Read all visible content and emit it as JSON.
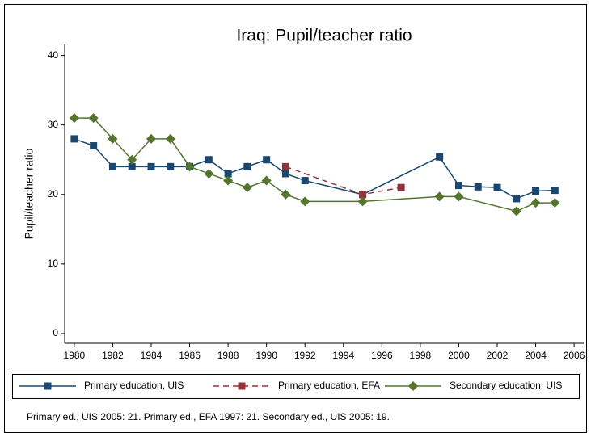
{
  "chart_data": {
    "type": "line",
    "title": "Iraq: Pupil/teacher ratio",
    "y_label": "Pupil/teacher ratio",
    "xlim": [
      1979.5,
      2006.5
    ],
    "ylim": [
      -1.4,
      41
    ],
    "xticks": [
      1980,
      1982,
      1984,
      1986,
      1988,
      1990,
      1992,
      1994,
      1996,
      1998,
      2000,
      2002,
      2004,
      2006
    ],
    "yticks": [
      0,
      10,
      20,
      30,
      40
    ],
    "series": [
      {
        "name": "Primary education, UIS",
        "color": "#1a476f",
        "marker": "square",
        "dash": false,
        "x": [
          1980,
          1981,
          1982,
          1983,
          1984,
          1985,
          1986,
          1987,
          1988,
          1989,
          1990,
          1991,
          1992,
          1995,
          1999,
          2000,
          2001,
          2002,
          2003,
          2004,
          2005
        ],
        "values": [
          28,
          27,
          24,
          24,
          24,
          24,
          24,
          25,
          23,
          24,
          25,
          23,
          22,
          20,
          25.4,
          21.3,
          21.1,
          21,
          19.4,
          20.5,
          20.6
        ]
      },
      {
        "name": "Primary education, EFA",
        "color": "#90353b",
        "marker": "square",
        "dash": true,
        "x": [
          1991,
          1995,
          1997
        ],
        "values": [
          24,
          20,
          21
        ]
      },
      {
        "name": "Secondary education, UIS",
        "color": "#55752f",
        "marker": "diamond",
        "dash": false,
        "x": [
          1980,
          1981,
          1982,
          1983,
          1984,
          1985,
          1986,
          1987,
          1988,
          1989,
          1990,
          1991,
          1992,
          1995,
          1999,
          2000,
          2003,
          2004,
          2005
        ],
        "values": [
          31,
          31,
          28,
          25,
          28,
          28,
          24,
          23,
          22,
          21,
          22,
          20,
          19,
          19,
          19.7,
          19.7,
          17.6,
          18.8,
          18.8
        ]
      }
    ],
    "note": "Primary ed., UIS 2005: 21. Primary ed., EFA 1997: 21. Secondary ed., UIS 2005: 19."
  }
}
